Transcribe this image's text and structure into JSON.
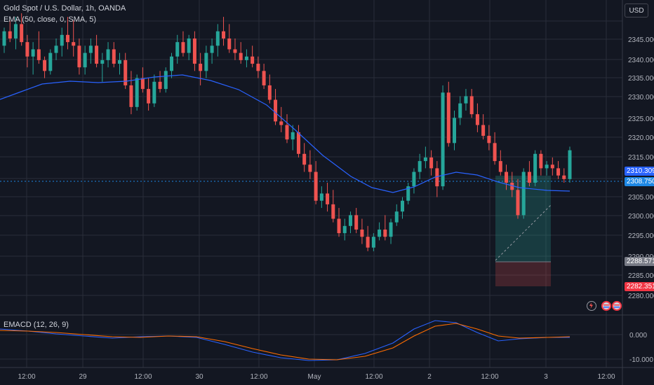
{
  "legend": {
    "symbol": "Gold Spot / U.S. Dollar, 1h, OANDA",
    "ema": "EMA (50, close, 0, SMA, 5)",
    "macd": "EMACD (12, 26, 9)"
  },
  "currency_button": "USD",
  "price_axis": {
    "ticks": [
      "2345.000",
      "2340.000",
      "2335.000",
      "2330.000",
      "2325.000",
      "2320.000",
      "2315.000",
      "2305.000",
      "2300.000",
      "2295.000",
      "2290.000",
      "2285.000",
      "2280.000"
    ],
    "tags": [
      {
        "label": "2310.309",
        "color": "#2962ff",
        "value": 2310.309
      },
      {
        "label": "2308.750",
        "color": "#1e88e5",
        "value": 2308.75
      },
      {
        "label": "2288.571",
        "color": "#787b86",
        "value": 2288.571
      },
      {
        "label": "2282.351",
        "color": "#f23645",
        "value": 2282.351
      }
    ]
  },
  "macd_axis": {
    "ticks": [
      "0.000",
      "-10.000"
    ]
  },
  "time_axis": {
    "labels": [
      "12:00",
      "29",
      "12:00",
      "30",
      "12:00",
      "May",
      "12:00",
      "2",
      "12:00",
      "3",
      "12:00"
    ]
  },
  "colors": {
    "up": "#26a69a",
    "down": "#ef5350",
    "ema": "#2962ff",
    "macd": "#2962ff",
    "signal": "#ff6d00",
    "bg": "#131722",
    "grid": "#2a2e39"
  },
  "icons": [
    "lightning-icon",
    "flag-icon",
    "flag-icon"
  ]
}
